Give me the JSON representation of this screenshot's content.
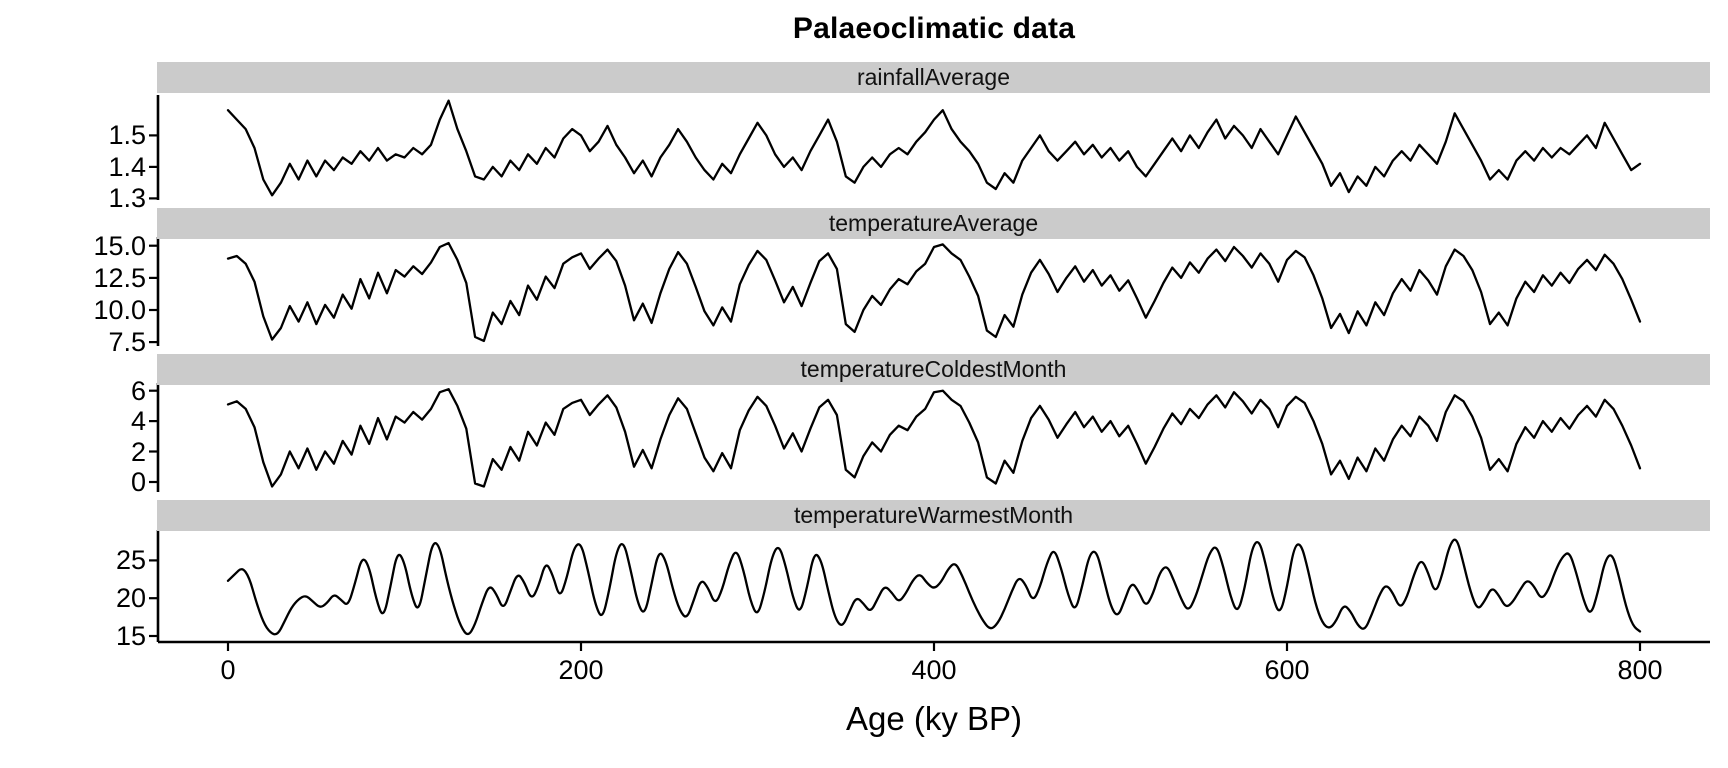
{
  "chart_data": {
    "type": "line",
    "title": "Palaeoclimatic data",
    "xlabel": "Age (ky BP)",
    "legend": "none",
    "grid": "off",
    "line_color": "#000000",
    "strip_background": "#cbcbcb",
    "xlim": [
      -40,
      840
    ],
    "x_ticks": [
      {
        "v": 0,
        "label": "0"
      },
      {
        "v": 200,
        "label": "200"
      },
      {
        "v": 400,
        "label": "400"
      },
      {
        "v": 600,
        "label": "600"
      },
      {
        "v": 800,
        "label": "800"
      }
    ],
    "facets": [
      {
        "label": "rainfallAverage",
        "ylim": [
          1.295,
          1.625
        ],
        "y_ticks": [
          {
            "v": 1.5,
            "label": "1.5"
          },
          {
            "v": 1.4,
            "label": "1.4"
          },
          {
            "v": 1.3,
            "label": "1.3"
          }
        ],
        "x_start": 0,
        "x_step": 5,
        "smooth": false,
        "values": [
          1.58,
          1.55,
          1.52,
          1.46,
          1.36,
          1.31,
          1.35,
          1.41,
          1.36,
          1.42,
          1.37,
          1.42,
          1.39,
          1.43,
          1.41,
          1.45,
          1.42,
          1.46,
          1.42,
          1.44,
          1.43,
          1.46,
          1.44,
          1.47,
          1.55,
          1.61,
          1.52,
          1.45,
          1.37,
          1.36,
          1.4,
          1.37,
          1.42,
          1.39,
          1.44,
          1.41,
          1.46,
          1.43,
          1.49,
          1.52,
          1.5,
          1.45,
          1.48,
          1.53,
          1.47,
          1.43,
          1.38,
          1.42,
          1.37,
          1.43,
          1.47,
          1.52,
          1.48,
          1.43,
          1.39,
          1.36,
          1.41,
          1.38,
          1.44,
          1.49,
          1.54,
          1.5,
          1.44,
          1.4,
          1.43,
          1.39,
          1.45,
          1.5,
          1.55,
          1.48,
          1.37,
          1.35,
          1.4,
          1.43,
          1.4,
          1.44,
          1.46,
          1.44,
          1.48,
          1.51,
          1.55,
          1.58,
          1.52,
          1.48,
          1.45,
          1.41,
          1.35,
          1.33,
          1.38,
          1.35,
          1.42,
          1.46,
          1.5,
          1.45,
          1.42,
          1.45,
          1.48,
          1.44,
          1.47,
          1.43,
          1.46,
          1.42,
          1.45,
          1.4,
          1.37,
          1.41,
          1.45,
          1.49,
          1.45,
          1.5,
          1.46,
          1.51,
          1.55,
          1.49,
          1.53,
          1.5,
          1.46,
          1.52,
          1.48,
          1.44,
          1.5,
          1.56,
          1.51,
          1.46,
          1.41,
          1.34,
          1.38,
          1.32,
          1.37,
          1.34,
          1.4,
          1.37,
          1.42,
          1.45,
          1.42,
          1.47,
          1.44,
          1.41,
          1.48,
          1.57,
          1.52,
          1.47,
          1.42,
          1.36,
          1.39,
          1.36,
          1.42,
          1.45,
          1.42,
          1.46,
          1.43,
          1.46,
          1.44,
          1.47,
          1.5,
          1.46,
          1.54,
          1.49,
          1.44,
          1.39,
          1.41
        ]
      },
      {
        "label": "temperatureAverage",
        "ylim": [
          7.2,
          15.6
        ],
        "y_ticks": [
          {
            "v": 15.0,
            "label": "15.0"
          },
          {
            "v": 12.5,
            "label": "12.5"
          },
          {
            "v": 10.0,
            "label": "10.0"
          },
          {
            "v": 7.5,
            "label": "7.5"
          }
        ],
        "x_start": 0,
        "x_step": 5,
        "smooth": false,
        "values": [
          14.0,
          14.2,
          13.6,
          12.2,
          9.5,
          7.7,
          8.6,
          10.3,
          9.1,
          10.6,
          8.9,
          10.4,
          9.4,
          11.2,
          10.1,
          12.4,
          10.9,
          12.9,
          11.3,
          13.1,
          12.6,
          13.4,
          12.8,
          13.7,
          14.9,
          15.2,
          13.9,
          12.1,
          7.9,
          7.6,
          9.8,
          8.9,
          10.7,
          9.6,
          11.9,
          10.8,
          12.6,
          11.7,
          13.6,
          14.1,
          14.4,
          13.2,
          14.0,
          14.7,
          13.8,
          11.9,
          9.2,
          10.5,
          9.0,
          11.3,
          13.2,
          14.5,
          13.6,
          11.8,
          9.9,
          8.8,
          10.2,
          9.1,
          12.0,
          13.5,
          14.6,
          13.9,
          12.3,
          10.6,
          11.8,
          10.3,
          12.1,
          13.8,
          14.4,
          13.2,
          8.9,
          8.3,
          10.0,
          11.1,
          10.4,
          11.6,
          12.4,
          12.0,
          13.0,
          13.6,
          14.9,
          15.1,
          14.4,
          13.9,
          12.6,
          11.1,
          8.4,
          7.9,
          9.6,
          8.7,
          11.2,
          12.9,
          13.9,
          12.8,
          11.4,
          12.5,
          13.4,
          12.2,
          13.1,
          11.9,
          12.7,
          11.5,
          12.3,
          10.9,
          9.4,
          10.7,
          12.1,
          13.3,
          12.5,
          13.7,
          12.9,
          14.0,
          14.7,
          13.8,
          14.9,
          14.2,
          13.3,
          14.4,
          13.6,
          12.2,
          13.9,
          14.6,
          14.1,
          12.7,
          10.9,
          8.6,
          9.7,
          8.2,
          9.9,
          8.8,
          10.6,
          9.6,
          11.3,
          12.4,
          11.5,
          13.1,
          12.3,
          11.2,
          13.4,
          14.7,
          14.2,
          13.1,
          11.4,
          8.9,
          9.8,
          8.8,
          10.9,
          12.2,
          11.4,
          12.7,
          11.9,
          12.9,
          12.1,
          13.2,
          13.9,
          13.1,
          14.3,
          13.6,
          12.4,
          10.8,
          9.1
        ]
      },
      {
        "label": "temperatureColdestMonth",
        "ylim": [
          -0.66,
          6.44
        ],
        "y_ticks": [
          {
            "v": 6,
            "label": "6"
          },
          {
            "v": 4,
            "label": "4"
          },
          {
            "v": 2,
            "label": "2"
          },
          {
            "v": 0,
            "label": "0"
          }
        ],
        "x_start": 0,
        "x_step": 5,
        "smooth": false,
        "values": [
          5.1,
          5.3,
          4.8,
          3.6,
          1.3,
          -0.3,
          0.5,
          2.0,
          0.9,
          2.2,
          0.8,
          2.0,
          1.2,
          2.7,
          1.8,
          3.7,
          2.5,
          4.2,
          2.8,
          4.3,
          3.9,
          4.6,
          4.1,
          4.8,
          5.9,
          6.1,
          5.0,
          3.5,
          -0.1,
          -0.3,
          1.5,
          0.8,
          2.3,
          1.4,
          3.3,
          2.4,
          3.9,
          3.1,
          4.8,
          5.2,
          5.4,
          4.4,
          5.1,
          5.7,
          4.9,
          3.3,
          1.0,
          2.1,
          0.9,
          2.8,
          4.4,
          5.5,
          4.8,
          3.2,
          1.6,
          0.7,
          1.9,
          0.9,
          3.4,
          4.7,
          5.6,
          5.0,
          3.7,
          2.2,
          3.2,
          2.0,
          3.5,
          4.9,
          5.4,
          4.4,
          0.8,
          0.3,
          1.7,
          2.6,
          2.0,
          3.1,
          3.7,
          3.4,
          4.3,
          4.8,
          5.9,
          6.0,
          5.4,
          5.0,
          3.9,
          2.6,
          0.3,
          -0.1,
          1.4,
          0.6,
          2.7,
          4.2,
          5.0,
          4.1,
          2.9,
          3.8,
          4.6,
          3.6,
          4.3,
          3.3,
          4.0,
          3.0,
          3.7,
          2.5,
          1.2,
          2.3,
          3.5,
          4.5,
          3.8,
          4.8,
          4.2,
          5.1,
          5.7,
          4.9,
          5.9,
          5.3,
          4.5,
          5.4,
          4.8,
          3.6,
          5.0,
          5.6,
          5.2,
          4.0,
          2.5,
          0.5,
          1.4,
          0.2,
          1.6,
          0.7,
          2.2,
          1.4,
          2.8,
          3.7,
          3.0,
          4.3,
          3.7,
          2.7,
          4.6,
          5.7,
          5.3,
          4.3,
          2.9,
          0.8,
          1.5,
          0.7,
          2.5,
          3.6,
          2.9,
          4.0,
          3.3,
          4.2,
          3.5,
          4.4,
          5.0,
          4.3,
          5.4,
          4.8,
          3.7,
          2.4,
          0.9
        ]
      },
      {
        "label": "temperatureWarmestMonth",
        "ylim": [
          14.2,
          28.9
        ],
        "y_ticks": [
          {
            "v": 25,
            "label": "25"
          },
          {
            "v": 20,
            "label": "20"
          },
          {
            "v": 15,
            "label": "15"
          }
        ],
        "x_start": 0,
        "x_step": 4,
        "smooth": true,
        "values": [
          22.3,
          23.2,
          24.1,
          22.8,
          19.5,
          16.8,
          15.4,
          15.1,
          16.9,
          18.8,
          19.9,
          20.4,
          19.6,
          18.7,
          19.3,
          20.6,
          19.8,
          18.9,
          22.0,
          25.6,
          24.2,
          19.8,
          17.2,
          21.5,
          26.3,
          24.8,
          20.3,
          18.0,
          22.8,
          27.6,
          26.9,
          22.4,
          18.9,
          16.2,
          14.9,
          16.5,
          19.4,
          21.8,
          20.6,
          18.4,
          20.9,
          23.4,
          22.1,
          19.7,
          21.6,
          24.9,
          23.1,
          19.9,
          22.7,
          26.8,
          27.4,
          23.6,
          19.2,
          17.1,
          21.0,
          26.2,
          27.7,
          23.9,
          19.4,
          17.6,
          21.9,
          26.4,
          25.1,
          21.2,
          18.3,
          17.2,
          19.8,
          22.6,
          21.4,
          19.1,
          21.1,
          24.6,
          26.6,
          23.8,
          19.6,
          17.5,
          20.8,
          25.4,
          27.2,
          24.3,
          20.1,
          17.8,
          21.3,
          26.1,
          25.2,
          21.0,
          17.3,
          16.1,
          18.2,
          20.2,
          19.3,
          18.1,
          19.9,
          21.7,
          20.8,
          19.4,
          20.6,
          22.4,
          23.3,
          22.0,
          21.2,
          22.1,
          23.9,
          24.8,
          23.0,
          20.7,
          18.6,
          16.9,
          15.8,
          16.6,
          18.5,
          20.9,
          22.9,
          21.8,
          19.5,
          21.4,
          24.7,
          26.7,
          24.0,
          20.4,
          18.1,
          21.6,
          25.8,
          26.4,
          22.7,
          19.0,
          17.4,
          19.7,
          22.2,
          20.9,
          18.8,
          20.5,
          23.5,
          24.4,
          22.3,
          19.9,
          18.2,
          20.0,
          23.0,
          26.0,
          27.1,
          24.1,
          20.2,
          17.9,
          21.2,
          26.6,
          27.9,
          24.5,
          20.0,
          17.7,
          21.4,
          26.9,
          27.3,
          23.7,
          19.3,
          16.7,
          15.9,
          17.0,
          19.2,
          18.3,
          16.4,
          15.7,
          17.8,
          20.3,
          21.9,
          20.7,
          18.6,
          20.1,
          23.2,
          25.3,
          23.4,
          20.5,
          23.1,
          27.0,
          28.2,
          24.6,
          20.8,
          18.4,
          19.6,
          21.5,
          20.4,
          18.7,
          19.5,
          21.1,
          22.5,
          21.6,
          19.8,
          21.0,
          23.6,
          25.5,
          26.2,
          23.3,
          19.7,
          17.6,
          20.6,
          24.9,
          26.1,
          23.0,
          18.9,
          16.3,
          15.6
        ]
      }
    ]
  }
}
